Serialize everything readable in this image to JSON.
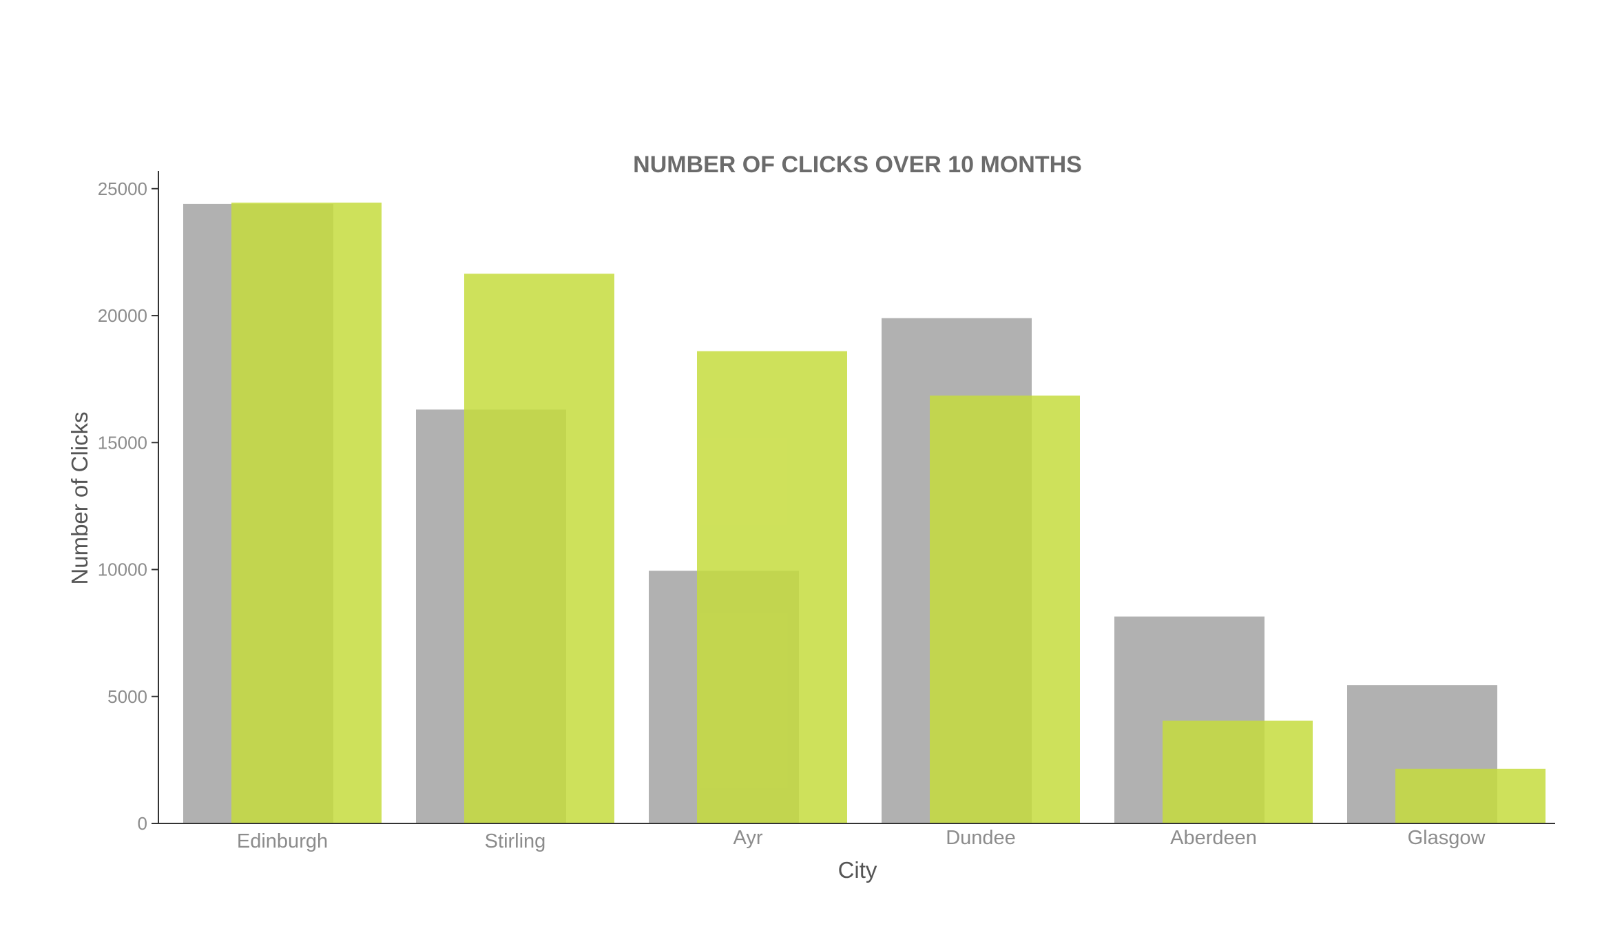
{
  "chart_data": {
    "type": "bar",
    "title": "NUMBER OF CLICKS OVER 10 MONTHS",
    "xlabel": "City",
    "ylabel": "Number of Clicks",
    "categories": [
      "Edinburgh",
      "Stirling",
      "Ayr",
      "Dundee",
      "Aberdeen",
      "Glasgow"
    ],
    "series": [
      {
        "values": [
          24400,
          16300,
          9950,
          19900,
          8150,
          5450
        ],
        "color": "#aaaaaa",
        "opacity": 0.92
      },
      {
        "values": [
          24450,
          21650,
          18600,
          16850,
          4050,
          2150
        ],
        "color": "#c6dc3e",
        "opacity": 0.85
      }
    ],
    "ylim": [
      0,
      25700
    ],
    "yticks": [
      0,
      5000,
      10000,
      15000,
      20000,
      25000
    ],
    "grid": false,
    "legend": "none",
    "bar_layout": "overlapping"
  }
}
